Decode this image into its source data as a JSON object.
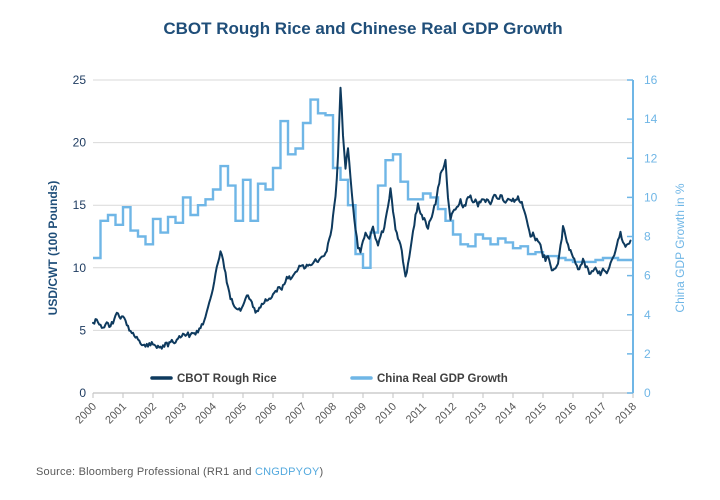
{
  "title": "CBOT Rough Rice and Chinese Real GDP Growth",
  "source": {
    "prefix": "Source: Bloomberg Professional (RR1 and ",
    "link": "CNGDPYOY",
    "suffix": ")"
  },
  "colors": {
    "rice_line": "#0E3A5E",
    "gdp_line": "#6FB6E6",
    "title_navy": "#1F4E79",
    "left_axis_text": "#1F3C61",
    "year_labels": "#595959",
    "gridline": "#D9D9D9",
    "x_axis_line": "#C2C2C2",
    "legend_text": "#404040",
    "source_text": "#595959",
    "source_link": "#53A9DE"
  },
  "chart_data": {
    "type": "line",
    "title": "CBOT Rough Rice and Chinese Real GDP Growth",
    "legend_position": "inside-bottom",
    "grid": "horizontal",
    "x_axis": {
      "tick_labels": [
        "2000",
        "2001",
        "2002",
        "2003",
        "2004",
        "2005",
        "2006",
        "2007",
        "2008",
        "2009",
        "2010",
        "2011",
        "2012",
        "2013",
        "2014",
        "2015",
        "2016",
        "2017",
        "2018"
      ],
      "range": [
        2000,
        2018
      ]
    },
    "left_axis": {
      "label": "USD/CWT (100 Pounds)",
      "tick_labels": [
        "0",
        "5",
        "10",
        "15",
        "20",
        "25"
      ],
      "ticks": [
        0,
        5,
        10,
        15,
        20,
        25
      ],
      "range": [
        0,
        25
      ]
    },
    "right_axis": {
      "label": "China GDP Growth in %",
      "tick_labels": [
        "0",
        "2",
        "4",
        "6",
        "8",
        "10",
        "12",
        "14",
        "16"
      ],
      "ticks": [
        0,
        2,
        4,
        6,
        8,
        10,
        12,
        14,
        16
      ],
      "range": [
        0,
        16
      ]
    },
    "series": [
      {
        "name": "CBOT Rough Rice",
        "axis": "left",
        "style": "line",
        "frequency": "monthly",
        "start_year": 2000,
        "values": [
          5.6,
          5.8,
          5.7,
          5.5,
          5.2,
          5.4,
          5.6,
          5.3,
          5.7,
          6.1,
          6.4,
          6.0,
          6.1,
          5.7,
          5.3,
          5.0,
          4.8,
          4.5,
          4.3,
          4.1,
          3.9,
          3.8,
          3.7,
          3.9,
          4.0,
          3.8,
          3.7,
          3.6,
          3.7,
          3.9,
          3.8,
          4.0,
          4.2,
          4.1,
          4.3,
          4.5,
          4.6,
          4.5,
          4.7,
          4.6,
          4.8,
          4.7,
          4.9,
          5.2,
          5.6,
          6.2,
          6.8,
          7.5,
          8.3,
          9.5,
          10.4,
          11.4,
          10.6,
          9.6,
          8.4,
          7.6,
          7.2,
          6.9,
          6.7,
          6.6,
          7.0,
          7.5,
          7.8,
          7.3,
          6.9,
          6.5,
          6.6,
          6.9,
          7.2,
          7.5,
          7.3,
          7.6,
          7.8,
          8.1,
          8.4,
          8.2,
          8.6,
          8.9,
          9.3,
          9.1,
          9.4,
          9.7,
          9.9,
          10.1,
          10.2,
          10.0,
          10.3,
          10.1,
          10.4,
          10.6,
          10.4,
          10.7,
          10.9,
          11.2,
          11.8,
          12.6,
          14.1,
          15.8,
          18.8,
          24.5,
          20.5,
          17.8,
          19.7,
          17.2,
          15.0,
          13.0,
          11.6,
          11.2,
          12.1,
          12.8,
          12.3,
          12.6,
          13.2,
          12.4,
          11.8,
          12.5,
          13.0,
          13.8,
          14.8,
          16.2,
          14.4,
          13.2,
          12.4,
          11.8,
          10.6,
          9.4,
          10.2,
          11.5,
          12.8,
          14.2,
          15.0,
          14.4,
          14.0,
          13.6,
          13.2,
          13.8,
          14.6,
          15.2,
          16.4,
          17.4,
          18.0,
          18.5,
          15.5,
          13.8,
          14.5,
          14.8,
          15.0,
          15.4,
          14.8,
          15.1,
          15.5,
          15.8,
          15.2,
          15.4,
          15.0,
          15.3,
          15.6,
          15.3,
          15.5,
          15.2,
          15.6,
          15.8,
          15.4,
          15.7,
          15.5,
          15.2,
          15.5,
          15.3,
          15.5,
          15.4,
          15.6,
          15.3,
          14.9,
          14.2,
          13.3,
          12.6,
          12.8,
          12.3,
          12.0,
          11.7,
          11.0,
          10.7,
          10.9,
          10.2,
          9.7,
          9.9,
          10.4,
          11.8,
          13.2,
          12.6,
          11.8,
          11.4,
          10.9,
          10.4,
          9.9,
          10.2,
          10.6,
          10.2,
          9.8,
          9.5,
          9.8,
          10.0,
          9.6,
          9.5,
          9.8,
          9.6,
          9.9,
          10.3,
          10.8,
          11.3,
          12.4,
          12.8,
          12.1,
          11.8,
          12.0,
          12.2
        ]
      },
      {
        "name": "China Real GDP Growth",
        "axis": "right",
        "style": "step",
        "frequency": "quarterly",
        "start_year": 2000,
        "values": [
          6.9,
          8.8,
          9.1,
          8.6,
          9.5,
          8.3,
          8.0,
          7.6,
          8.9,
          8.2,
          9.0,
          8.7,
          10.0,
          9.1,
          9.6,
          9.9,
          10.4,
          11.6,
          10.6,
          8.8,
          10.9,
          8.8,
          10.7,
          10.4,
          11.5,
          13.9,
          12.2,
          12.5,
          13.8,
          15.0,
          14.3,
          14.2,
          11.5,
          10.9,
          9.6,
          7.1,
          6.4,
          8.2,
          10.6,
          11.9,
          12.2,
          10.8,
          9.9,
          9.9,
          10.2,
          10.0,
          9.4,
          8.8,
          8.1,
          7.6,
          7.5,
          8.1,
          7.9,
          7.6,
          7.9,
          7.7,
          7.4,
          7.5,
          7.1,
          7.2,
          7.0,
          7.0,
          6.9,
          6.8,
          6.7,
          6.7,
          6.7,
          6.8,
          6.9,
          6.9,
          6.8,
          6.8
        ]
      }
    ]
  }
}
